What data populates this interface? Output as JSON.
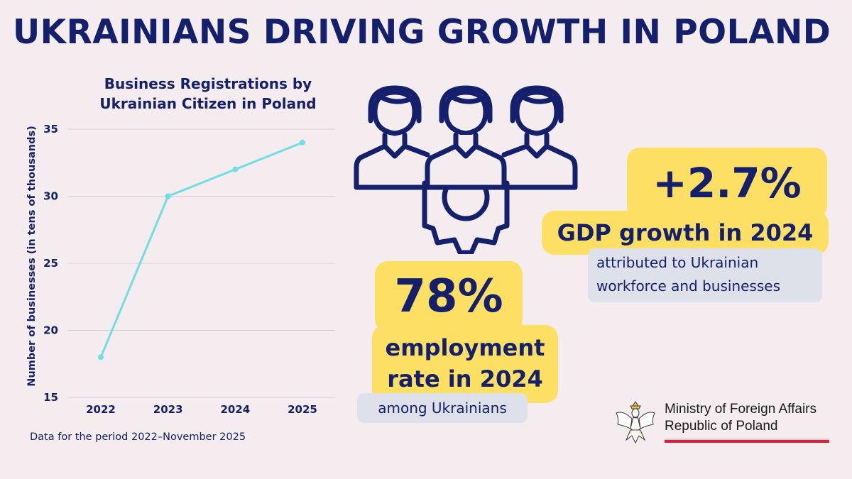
{
  "headline": "UKRAINIANS DRIVING GROWTH IN POLAND",
  "chart_data": {
    "type": "line",
    "title": "Business Registrations by Ukrainian Citizen in Poland",
    "title_lines": [
      "Business Registrations by",
      "Ukrainian Citizen in Poland"
    ],
    "xlabel": "",
    "ylabel": "Number of businesses (in tens of thousands)",
    "categories": [
      "2022",
      "2023",
      "2024",
      "2025"
    ],
    "series": [
      {
        "values": [
          18,
          30,
          32,
          34
        ]
      }
    ],
    "ylim": [
      15,
      35
    ],
    "yticks": [
      15,
      20,
      25,
      30,
      35
    ],
    "grid": true,
    "color": "#72dde2"
  },
  "chart_note": "Data for the period 2022–November 2025",
  "gdp": {
    "value": "+2.7%",
    "label": "GDP growth in 2024",
    "sub_lines": [
      "attributed to Ukrainian",
      "workforce and businesses"
    ]
  },
  "employment": {
    "value": "78%",
    "label_lines": [
      "employment",
      "rate in 2024"
    ],
    "sub": "among Ukrainians"
  },
  "ministry": {
    "lines": [
      "Ministry of Foreign Affairs",
      "Republic of Poland"
    ]
  },
  "colors": {
    "navy": "#14206b",
    "highlight": "#fde063",
    "sub_box": "#dfe1ea",
    "background": "#f4ecee",
    "accent_red": "#d4213d"
  },
  "icons": [
    "people-gear-icon",
    "polish-eagle-emblem"
  ]
}
